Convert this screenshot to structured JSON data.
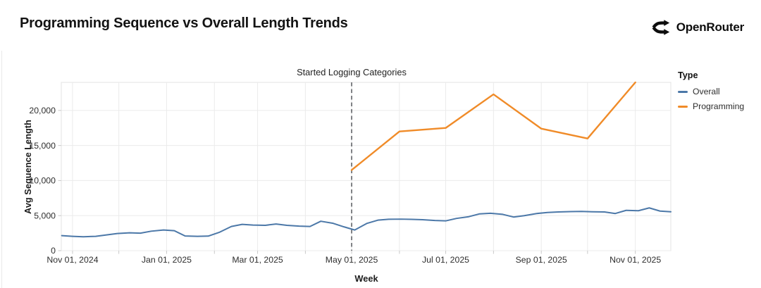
{
  "header": {
    "title": "Programming Sequence vs Overall Length Trends",
    "brand": "OpenRouter"
  },
  "colors": {
    "overall": "#4c78a8",
    "programming": "#f08b28",
    "grid": "#ebebeb",
    "plot_border": "#e3e3e3",
    "tick_mark": "#c9c9c9",
    "annotation_rule": "#4a4d52",
    "text": "#2e2e2e"
  },
  "chart_data": {
    "type": "line",
    "title": "Programming Sequence vs Overall Length Trends",
    "xlabel": "Week",
    "ylabel": "Avg Sequence Length",
    "ylim": [
      0,
      24000
    ],
    "xlim_days": [
      -7.3,
      388
    ],
    "grid": true,
    "legend": {
      "title": "Type",
      "position": "right"
    },
    "y_ticks": [
      0,
      5000,
      10000,
      15000,
      20000
    ],
    "y_tick_labels": [
      "0",
      "5,000",
      "10,000",
      "15,000",
      "20,000"
    ],
    "x_tick_days": [
      0,
      61,
      120,
      181,
      242,
      304,
      365
    ],
    "x_tick_labels": [
      "Nov 01, 2024",
      "Jan 01, 2025",
      "Mar 01, 2025",
      "May 01, 2025",
      "Jul 01, 2025",
      "Sep 01, 2025",
      "Nov 01, 2025"
    ],
    "x_minor_tick_days": [
      0,
      30,
      61,
      92,
      120,
      151,
      181,
      212,
      242,
      273,
      304,
      334,
      365
    ],
    "annotation": {
      "label": "Started Logging Categories",
      "day": 181,
      "style": "dashed-vertical-rule"
    },
    "series": [
      {
        "name": "Overall",
        "color": "#4c78a8",
        "x_days": [
          -7,
          0,
          7,
          15,
          22,
          29,
          37,
          44,
          51,
          59,
          66,
          73,
          81,
          88,
          95,
          103,
          110,
          117,
          125,
          132,
          139,
          147,
          154,
          161,
          169,
          176,
          183,
          191,
          198,
          205,
          213,
          220,
          227,
          235,
          242,
          249,
          257,
          264,
          271,
          279,
          286,
          293,
          301,
          308,
          315,
          323,
          330,
          337,
          345,
          352,
          359,
          367,
          374,
          381,
          388
        ],
        "values": [
          2150,
          2050,
          1980,
          2050,
          2250,
          2450,
          2550,
          2500,
          2780,
          2950,
          2850,
          2100,
          2050,
          2080,
          2600,
          3450,
          3750,
          3650,
          3620,
          3800,
          3620,
          3500,
          3450,
          4200,
          3900,
          3400,
          2950,
          3900,
          4350,
          4480,
          4500,
          4470,
          4420,
          4300,
          4250,
          4600,
          4850,
          5250,
          5330,
          5180,
          4800,
          5000,
          5300,
          5450,
          5520,
          5570,
          5600,
          5550,
          5520,
          5300,
          5750,
          5700,
          6100,
          5650,
          5550
        ]
      },
      {
        "name": "Programming",
        "color": "#f08b28",
        "x_days": [
          181,
          212,
          242,
          273,
          304,
          334,
          365
        ],
        "values": [
          11500,
          17000,
          17500,
          22300,
          17400,
          16000,
          24000
        ]
      }
    ]
  }
}
